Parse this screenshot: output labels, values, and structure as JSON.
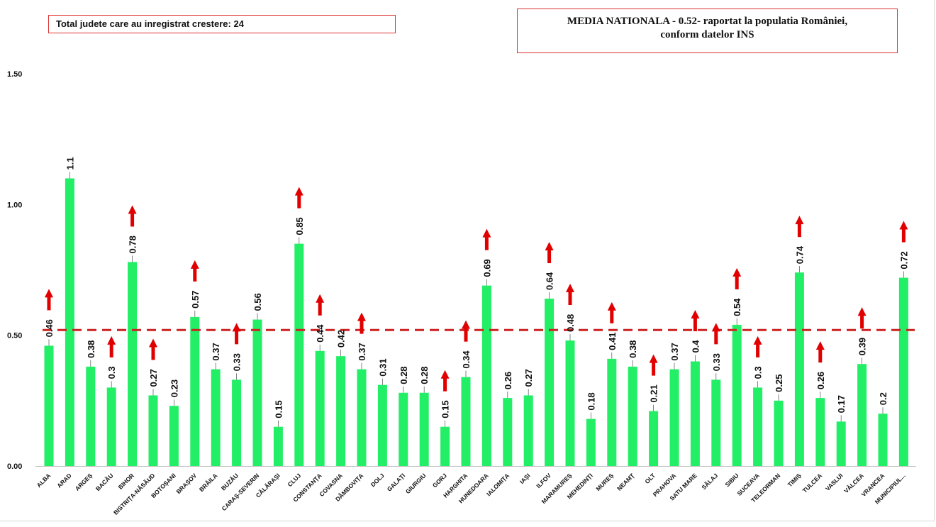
{
  "total_box": {
    "text": "Total judete care au inregistrat crestere: 24"
  },
  "media_box": {
    "line1": "MEDIA NATIONALA - 0.52-  raportat la populatia României,",
    "line2": "conform datelor INS"
  },
  "colors": {
    "bar": "#22ee66",
    "reference_line": "#cc2222",
    "arrow": "#e00000",
    "label": "#111111"
  },
  "chart_data": {
    "type": "bar",
    "title": "",
    "xlabel": "",
    "ylabel": "",
    "ylim": [
      0,
      1.5
    ],
    "yticks": [
      "0.00",
      "0.50",
      "1.00",
      "1.50"
    ],
    "reference_line": {
      "value": 0.52,
      "style": "dashed"
    },
    "categories": [
      "ALBA",
      "ARAD",
      "ARGEȘ",
      "BACĂU",
      "BIHOR",
      "BISTRIȚA-NĂSĂUD",
      "BOTOȘANI",
      "BRAȘOV",
      "BRĂILA",
      "BUZĂU",
      "CARAȘ-SEVERIN",
      "CĂLĂRAȘI",
      "CLUJ",
      "CONSTANȚA",
      "COVASNA",
      "DÂMBOVIȚA",
      "DOLJ",
      "GALAȚI",
      "GIURGIU",
      "GORJ",
      "HARGHITA",
      "HUNEDOARA",
      "IALOMIȚA",
      "IAȘI",
      "ILFOV",
      "MARAMUREȘ",
      "MEHEDINȚI",
      "MUREȘ",
      "NEAMȚ",
      "OLT",
      "PRAHOVA",
      "SATU MARE",
      "SĂLAJ",
      "SIBIU",
      "SUCEAVA",
      "TELEORMAN",
      "TIMIȘ",
      "TULCEA",
      "VASLUI",
      "VÂLCEA",
      "VRANCEA",
      "MUNICIPIUL..."
    ],
    "values": [
      0.46,
      1.1,
      0.38,
      0.3,
      0.78,
      0.27,
      0.23,
      0.57,
      0.37,
      0.33,
      0.56,
      0.15,
      0.85,
      0.44,
      0.42,
      0.37,
      0.31,
      0.28,
      0.28,
      0.15,
      0.34,
      0.69,
      0.26,
      0.27,
      0.64,
      0.48,
      0.18,
      0.41,
      0.38,
      0.21,
      0.37,
      0.4,
      0.33,
      0.54,
      0.3,
      0.25,
      0.74,
      0.26,
      0.17,
      0.39,
      0.2,
      0.72
    ],
    "value_labels": [
      "0.46",
      "1.1",
      "0.38",
      "0.3",
      "0.78",
      "0.27",
      "0.23",
      "0.57",
      "0.37",
      "0.33",
      "0.56",
      "0.15",
      "0.85",
      "0.44",
      "0.42",
      "0.37",
      "0.31",
      "0.28",
      "0.28",
      "0.15",
      "0.34",
      "0.69",
      "0.26",
      "0.27",
      "0.64",
      "0.48",
      "0.18",
      "0.41",
      "0.38",
      "0.21",
      "0.37",
      "0.4",
      "0.33",
      "0.54",
      "0.3",
      "0.25",
      "0.74",
      "0.26",
      "0.17",
      "0.39",
      "0.2",
      "0.72"
    ],
    "increase": [
      true,
      false,
      false,
      true,
      true,
      true,
      false,
      true,
      false,
      true,
      false,
      false,
      true,
      true,
      false,
      true,
      false,
      false,
      false,
      true,
      true,
      true,
      false,
      false,
      true,
      true,
      false,
      true,
      false,
      true,
      false,
      true,
      true,
      true,
      true,
      false,
      true,
      true,
      false,
      true,
      false,
      true
    ]
  }
}
